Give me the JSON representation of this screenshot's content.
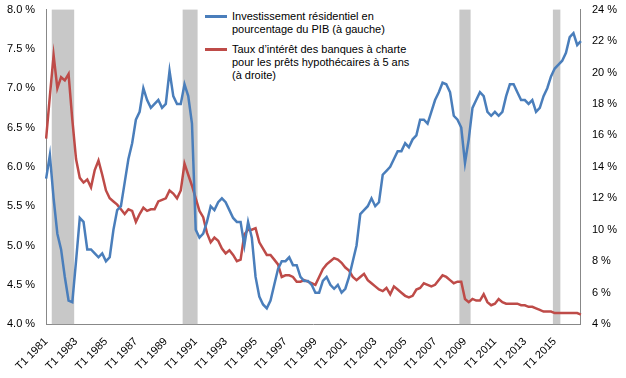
{
  "chart_data": {
    "type": "line",
    "categories": [
      "T1 1981",
      null,
      null,
      null,
      null,
      null,
      null,
      null,
      "T1 1983",
      null,
      null,
      null,
      null,
      null,
      null,
      null,
      "T1 1985",
      null,
      null,
      null,
      null,
      null,
      null,
      null,
      "T1 1987",
      null,
      null,
      null,
      null,
      null,
      null,
      null,
      "T1 1989",
      null,
      null,
      null,
      null,
      null,
      null,
      null,
      "T1 1991",
      null,
      null,
      null,
      null,
      null,
      null,
      null,
      "T1 1993",
      null,
      null,
      null,
      null,
      null,
      null,
      null,
      "T1 1995",
      null,
      null,
      null,
      null,
      null,
      null,
      null,
      "T1 1997",
      null,
      null,
      null,
      null,
      null,
      null,
      null,
      "T1 1999",
      null,
      null,
      null,
      null,
      null,
      null,
      null,
      "T1 2001",
      null,
      null,
      null,
      null,
      null,
      null,
      null,
      "T1 2003",
      null,
      null,
      null,
      null,
      null,
      null,
      null,
      "T1 2005",
      null,
      null,
      null,
      null,
      null,
      null,
      null,
      "T1 2007",
      null,
      null,
      null,
      null,
      null,
      null,
      null,
      "T1 2009",
      null,
      null,
      null,
      null,
      null,
      null,
      null,
      "T1 2011",
      null,
      null,
      null,
      null,
      null,
      null,
      null,
      "T1 2013",
      null,
      null,
      null,
      null,
      null,
      null,
      null,
      "T1 2015",
      null,
      null,
      null,
      null,
      null,
      null,
      null
    ],
    "series": [
      {
        "name": "Investissement résidentiel en pourcentage du PIB (à gauche)",
        "color": "#4a7ebb",
        "values": [
          5.85,
          6.15,
          5.6,
          5.15,
          4.95,
          4.6,
          4.3,
          4.28,
          4.8,
          5.35,
          5.3,
          4.95,
          4.95,
          4.9,
          4.85,
          4.9,
          4.8,
          4.85,
          5.2,
          5.45,
          5.5,
          5.8,
          6.1,
          6.3,
          6.6,
          6.7,
          7.0,
          6.85,
          6.75,
          6.8,
          6.85,
          6.75,
          6.8,
          7.22,
          6.9,
          6.8,
          6.8,
          7.05,
          6.9,
          6.55,
          5.2,
          5.1,
          5.15,
          5.3,
          5.5,
          5.45,
          5.55,
          5.6,
          5.55,
          5.45,
          5.35,
          5.3,
          5.3,
          5.0,
          5.3,
          5.1,
          4.6,
          4.35,
          4.25,
          4.2,
          4.3,
          4.5,
          4.7,
          4.8,
          4.8,
          4.85,
          4.75,
          4.75,
          4.6,
          4.55,
          4.55,
          4.5,
          4.4,
          4.4,
          4.55,
          4.6,
          4.5,
          4.45,
          4.5,
          4.4,
          4.45,
          4.6,
          4.8,
          5.0,
          5.4,
          5.45,
          5.5,
          5.6,
          5.5,
          5.55,
          5.9,
          5.95,
          6.0,
          6.1,
          6.2,
          6.2,
          6.3,
          6.25,
          6.35,
          6.4,
          6.6,
          6.6,
          6.55,
          6.7,
          6.85,
          6.95,
          7.07,
          7.05,
          6.95,
          6.65,
          6.6,
          6.5,
          6.05,
          6.35,
          6.75,
          6.85,
          6.95,
          6.9,
          6.7,
          6.65,
          6.7,
          6.65,
          6.7,
          6.9,
          7.05,
          7.05,
          6.95,
          6.85,
          6.85,
          6.8,
          6.85,
          6.7,
          6.75,
          6.9,
          7.0,
          7.15,
          7.25,
          7.3,
          7.35,
          7.45,
          7.65,
          7.7,
          7.55,
          7.6
        ]
      },
      {
        "name": "Taux d’intérêt des banques à charte pour les prêts hypothécaires à 5 ans (à droite)",
        "color": "#be4b48",
        "axis": "y2",
        "values": [
          15.8,
          18.5,
          21.1,
          19.0,
          19.7,
          19.5,
          19.9,
          17.0,
          14.5,
          13.3,
          13.0,
          13.2,
          12.7,
          13.8,
          14.4,
          13.5,
          12.5,
          12.0,
          11.8,
          11.6,
          11.3,
          11.0,
          11.3,
          11.2,
          10.5,
          11.0,
          11.4,
          11.2,
          11.3,
          11.3,
          11.8,
          11.9,
          12.0,
          12.5,
          12.3,
          12.0,
          12.5,
          14.2,
          13.5,
          12.8,
          12.0,
          11.2,
          10.8,
          9.8,
          9.2,
          9.5,
          9.3,
          8.8,
          8.5,
          8.7,
          8.4,
          8.0,
          8.1,
          9.7,
          10.0,
          10.0,
          10.1,
          9.2,
          8.8,
          8.4,
          8.4,
          8.1,
          7.8,
          7.0,
          7.1,
          7.1,
          7.0,
          6.7,
          6.7,
          6.8,
          6.7,
          6.6,
          6.5,
          7.0,
          7.5,
          7.8,
          8.0,
          8.2,
          8.1,
          7.9,
          7.6,
          7.4,
          7.0,
          6.8,
          7.0,
          7.2,
          6.8,
          6.6,
          6.4,
          6.2,
          6.1,
          6.3,
          5.9,
          6.4,
          6.2,
          6.0,
          5.8,
          5.7,
          5.8,
          6.2,
          6.3,
          6.6,
          6.5,
          6.4,
          6.5,
          6.8,
          7.1,
          7.0,
          6.8,
          6.6,
          6.7,
          6.7,
          5.6,
          5.4,
          5.6,
          5.5,
          5.5,
          5.9,
          5.4,
          5.2,
          5.3,
          5.6,
          5.4,
          5.3,
          5.3,
          5.3,
          5.3,
          5.2,
          5.2,
          5.1,
          5.1,
          5.0,
          4.9,
          4.8,
          4.8,
          4.8,
          4.7,
          4.7,
          4.7,
          4.7,
          4.7,
          4.7,
          4.7,
          4.6
        ]
      }
    ],
    "ylim": [
      4.0,
      8.0
    ],
    "yticks": [
      {
        "value": 4.0,
        "label": "4.0 %"
      },
      {
        "value": 4.5,
        "label": "4.5 %"
      },
      {
        "value": 5.0,
        "label": "5.0 %"
      },
      {
        "value": 5.5,
        "label": "5.5 %"
      },
      {
        "value": 6.0,
        "label": "6.0 %"
      },
      {
        "value": 6.5,
        "label": "6.5 %"
      },
      {
        "value": 7.0,
        "label": "7.0 %"
      },
      {
        "value": 7.5,
        "label": "7.5 %"
      },
      {
        "value": 8.0,
        "label": "8.0 %"
      }
    ],
    "y2lim": [
      4,
      24
    ],
    "y2ticks": [
      {
        "value": 4,
        "label": "4 %"
      },
      {
        "value": 6,
        "label": "6 %"
      },
      {
        "value": 8,
        "label": "8 %"
      },
      {
        "value": 10,
        "label": "10 %"
      },
      {
        "value": 12,
        "label": "12 %"
      },
      {
        "value": 14,
        "label": "14 %"
      },
      {
        "value": 16,
        "label": "16 %"
      },
      {
        "value": 18,
        "label": "18 %"
      },
      {
        "value": 20,
        "label": "20 %"
      },
      {
        "value": 22,
        "label": "22 %"
      },
      {
        "value": 24,
        "label": "24 %"
      }
    ],
    "shaded_periods": [
      {
        "start": [
          1981,
          3
        ],
        "end": [
          1982,
          4
        ]
      },
      {
        "start": [
          1990,
          2
        ],
        "end": [
          1991,
          1
        ]
      },
      {
        "start": [
          2008,
          4
        ],
        "end": [
          2009,
          2
        ]
      },
      {
        "start": [
          2015,
          1
        ],
        "end": [
          2015,
          2
        ]
      }
    ],
    "grid": false,
    "legend": "top"
  }
}
